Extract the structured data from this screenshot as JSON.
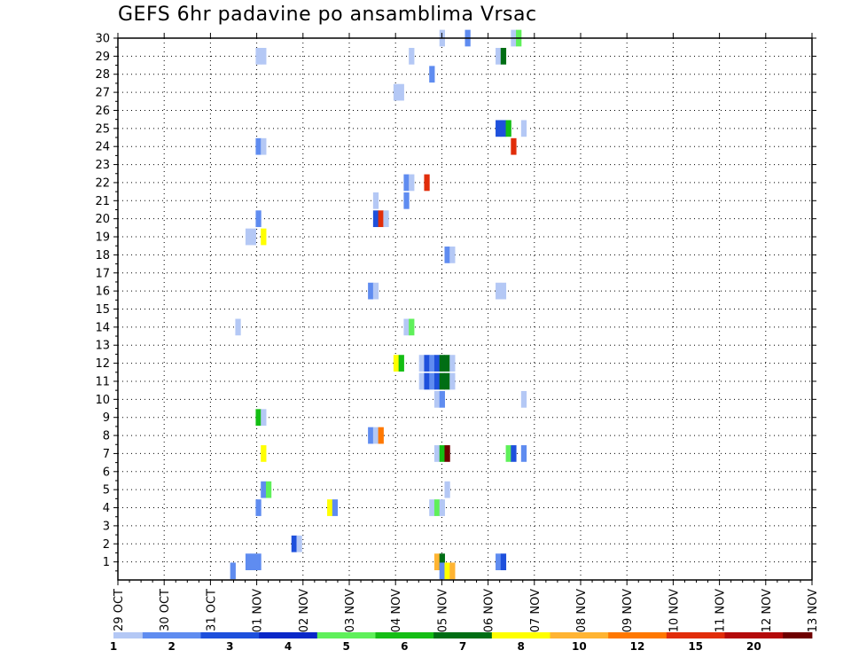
{
  "chart_data": {
    "type": "heatmap",
    "title": "GEFS 6hr padavine po ansamblima Vrsac",
    "xlabel": "",
    "ylabel": "",
    "x_tick_labels": [
      "29 OCT",
      "30 OCT",
      "31 OCT",
      "01 NOV",
      "02 NOV",
      "03 NOV",
      "04 NOV",
      "05 NOV",
      "06 NOV",
      "07 NOV",
      "08 NOV",
      "09 NOV",
      "10 NOV",
      "11 NOV",
      "12 NOV",
      "13 NOV"
    ],
    "y_tick_labels": [
      "1",
      "2",
      "3",
      "4",
      "5",
      "6",
      "7",
      "8",
      "9",
      "10",
      "11",
      "12",
      "13",
      "14",
      "15",
      "16",
      "17",
      "18",
      "19",
      "20",
      "21",
      "22",
      "23",
      "24",
      "25",
      "26",
      "27",
      "28",
      "29",
      "30"
    ],
    "x_units": "6-hour steps from 29 OCT 00z",
    "ylim": [
      0,
      30
    ],
    "grid": true,
    "legend": {
      "placement": "bottom",
      "colors": [
        "#b4c8f5",
        "#5f8cf0",
        "#1e50dc",
        "#0a28c8",
        "#5ff05a",
        "#14be14",
        "#006e14",
        "#ffff00",
        "#ffb432",
        "#ff7800",
        "#e12d0a",
        "#b40a0a",
        "#6e0000"
      ],
      "labels": [
        "1",
        "2",
        "3",
        "4",
        "5",
        "6",
        "7",
        "8",
        "10",
        "12",
        "15",
        "20"
      ]
    },
    "cells": [
      [
        119,
        30,
        1
      ],
      [
        124,
        30,
        2
      ],
      [
        133,
        30,
        1
      ],
      [
        134,
        30,
        5
      ],
      [
        83,
        29,
        1
      ],
      [
        84,
        29,
        1
      ],
      [
        113,
        29,
        1
      ],
      [
        130,
        29,
        1
      ],
      [
        131,
        29,
        7
      ],
      [
        117,
        28,
        2
      ],
      [
        110,
        27,
        1
      ],
      [
        111,
        27,
        1
      ],
      [
        130,
        25,
        3
      ],
      [
        131,
        25,
        3
      ],
      [
        132,
        25,
        6
      ],
      [
        135,
        25,
        1
      ],
      [
        83,
        24,
        2
      ],
      [
        84,
        24,
        1
      ],
      [
        133,
        24,
        11
      ],
      [
        112,
        22,
        2
      ],
      [
        113,
        22,
        1
      ],
      [
        116,
        22,
        11
      ],
      [
        112,
        21,
        2
      ],
      [
        106,
        21,
        1
      ],
      [
        106,
        20,
        3
      ],
      [
        107,
        20,
        11
      ],
      [
        108,
        20,
        1
      ],
      [
        83,
        20,
        2
      ],
      [
        81,
        19,
        1
      ],
      [
        82,
        19,
        1
      ],
      [
        84,
        19,
        8
      ],
      [
        120,
        18,
        2
      ],
      [
        121,
        18,
        1
      ],
      [
        105,
        16,
        2
      ],
      [
        106,
        16,
        1
      ],
      [
        130,
        16,
        1
      ],
      [
        131,
        16,
        1
      ],
      [
        79,
        14,
        1
      ],
      [
        112,
        14,
        1
      ],
      [
        113,
        14,
        5
      ],
      [
        110,
        12,
        8
      ],
      [
        111,
        12,
        6
      ],
      [
        115,
        12,
        1
      ],
      [
        116,
        12,
        3
      ],
      [
        117,
        12,
        2
      ],
      [
        118,
        12,
        3
      ],
      [
        119,
        12,
        7
      ],
      [
        120,
        12,
        7
      ],
      [
        121,
        12,
        1
      ],
      [
        115,
        11,
        1
      ],
      [
        116,
        11,
        3
      ],
      [
        117,
        11,
        2
      ],
      [
        118,
        11,
        3
      ],
      [
        119,
        11,
        7
      ],
      [
        120,
        11,
        7
      ],
      [
        121,
        11,
        1
      ],
      [
        118,
        10,
        1
      ],
      [
        119,
        10,
        2
      ],
      [
        135,
        10,
        1
      ],
      [
        83,
        9,
        6
      ],
      [
        84,
        9,
        1
      ],
      [
        105,
        8,
        2
      ],
      [
        106,
        8,
        1
      ],
      [
        107,
        8,
        10
      ],
      [
        84,
        7,
        8
      ],
      [
        118,
        7,
        1
      ],
      [
        119,
        7,
        6
      ],
      [
        120,
        7,
        13
      ],
      [
        132,
        7,
        5
      ],
      [
        133,
        7,
        3
      ],
      [
        135,
        7,
        2
      ],
      [
        84,
        5,
        2
      ],
      [
        85,
        5,
        5
      ],
      [
        120,
        5,
        1
      ],
      [
        83,
        4,
        2
      ],
      [
        97,
        4,
        8
      ],
      [
        98,
        4,
        2
      ],
      [
        117,
        4,
        1
      ],
      [
        118,
        4,
        5
      ],
      [
        119,
        4,
        1
      ],
      [
        90,
        2,
        3
      ],
      [
        91,
        2,
        1
      ],
      [
        81,
        1,
        2
      ],
      [
        82,
        1,
        2
      ],
      [
        83,
        1,
        2
      ],
      [
        118,
        1,
        9
      ],
      [
        119,
        1,
        7
      ],
      [
        130,
        1,
        2
      ],
      [
        131,
        1,
        3
      ],
      [
        78,
        0.5,
        2
      ],
      [
        119,
        0.5,
        2
      ],
      [
        120,
        0.5,
        8
      ],
      [
        121,
        0.5,
        9
      ]
    ]
  }
}
